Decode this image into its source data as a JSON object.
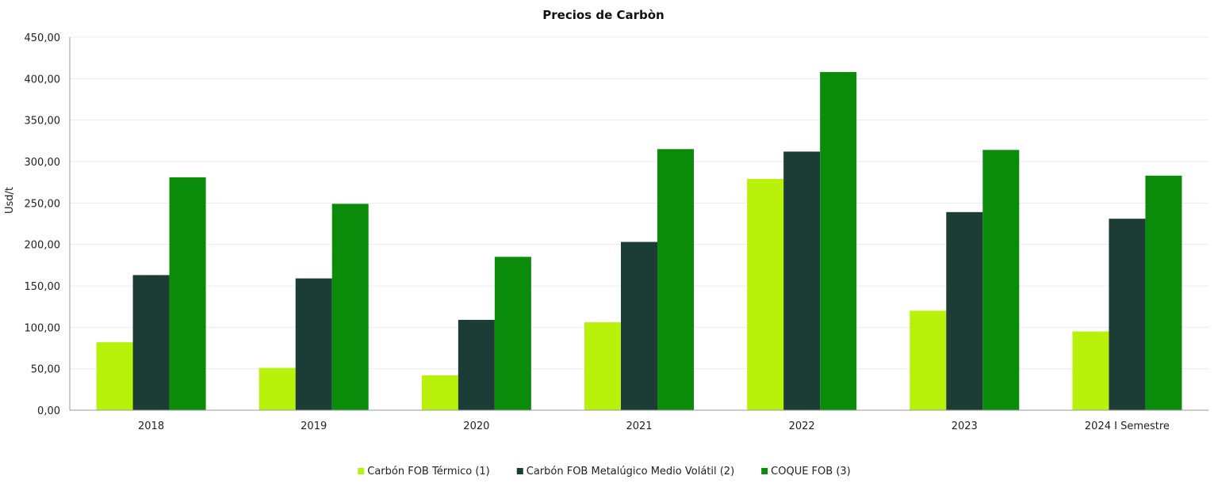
{
  "chart_data": {
    "type": "bar",
    "title": "Precios de Carbòn",
    "xlabel": "",
    "ylabel": "Usd/t",
    "ylim": [
      0,
      450
    ],
    "y_ticks": [
      "0,00",
      "50,00",
      "100,00",
      "150,00",
      "200,00",
      "250,00",
      "300,00",
      "350,00",
      "400,00",
      "450,00"
    ],
    "categories": [
      "2018",
      "2019",
      "2020",
      "2021",
      "2022",
      "2023",
      "2024 I Semestre"
    ],
    "grid": true,
    "legend_position": "bottom",
    "series": [
      {
        "name": "Carbón  FOB Térmico (1)",
        "color": "#b8f20a",
        "values": [
          82,
          51,
          42,
          106,
          279,
          120,
          95
        ]
      },
      {
        "name": "Carbón FOB Metalúgico  Medio Volátil (2)",
        "color": "#1b3d35",
        "values": [
          163,
          159,
          109,
          203,
          312,
          239,
          231
        ]
      },
      {
        "name": "COQUE FOB (3)",
        "color": "#0a8c0a",
        "values": [
          281,
          249,
          185,
          315,
          408,
          314,
          283
        ]
      }
    ]
  }
}
